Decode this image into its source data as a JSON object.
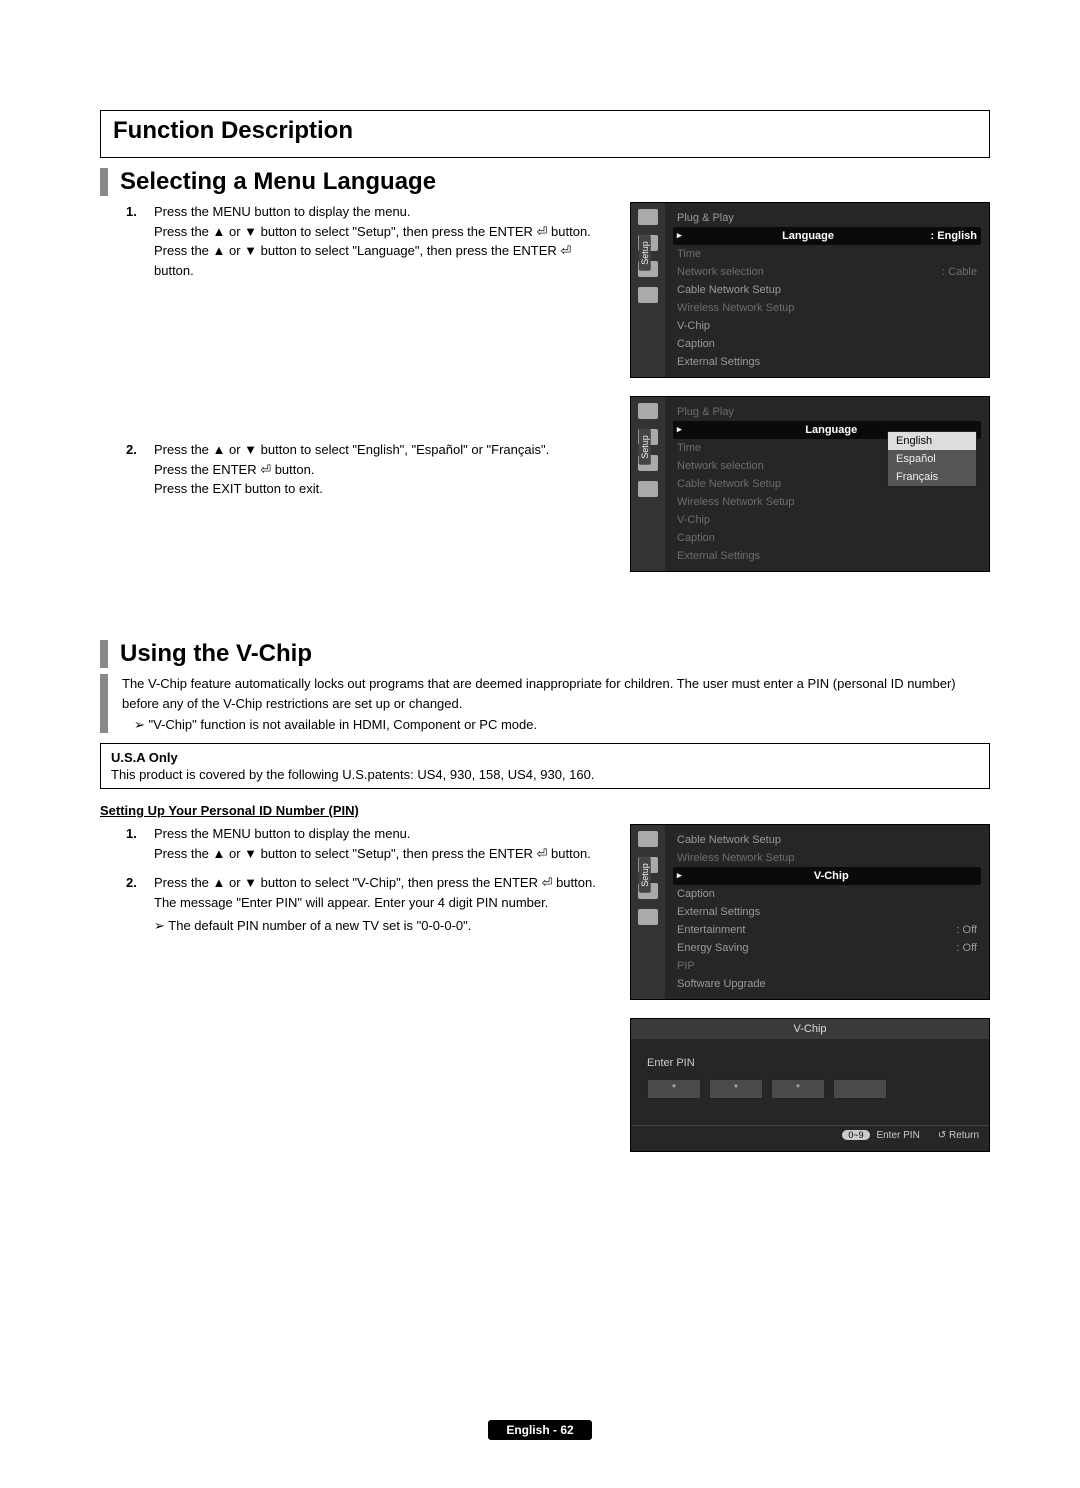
{
  "page_title": "Function Description",
  "section1": {
    "title": "Selecting a Menu Language",
    "steps": [
      "Press the MENU button to display the menu.\nPress the ▲ or ▼ button to select \"Setup\", then press the ENTER ⏎ button.\nPress the ▲ or ▼ button to select \"Language\", then press the ENTER ⏎ button.",
      "Press the ▲ or ▼ button to select \"English\", \"Español\" or \"Français\".\nPress the ENTER ⏎ button.\nPress the EXIT button to exit."
    ],
    "menu1": {
      "side_label": "Setup",
      "items": [
        {
          "label": "Plug & Play",
          "value": "",
          "dim": false,
          "hl": false
        },
        {
          "label": "Language",
          "value": ": English",
          "dim": false,
          "hl": true
        },
        {
          "label": "Time",
          "value": "",
          "dim": true,
          "hl": false
        },
        {
          "label": "Network selection",
          "value": ": Cable",
          "dim": true,
          "hl": false
        },
        {
          "label": "Cable Network Setup",
          "value": "",
          "dim": false,
          "hl": false
        },
        {
          "label": "Wireless Network Setup",
          "value": "",
          "dim": true,
          "hl": false
        },
        {
          "label": "V-Chip",
          "value": "",
          "dim": false,
          "hl": false
        },
        {
          "label": "Caption",
          "value": "",
          "dim": false,
          "hl": false
        },
        {
          "label": "External Settings",
          "value": "",
          "dim": false,
          "hl": false
        }
      ]
    },
    "menu2": {
      "side_label": "Setup",
      "items": [
        {
          "label": "Plug & Play",
          "value": "",
          "dim": true,
          "hl": false
        },
        {
          "label": "Language",
          "value": "",
          "dim": false,
          "hl": true
        },
        {
          "label": "Time",
          "value": "",
          "dim": true,
          "hl": false
        },
        {
          "label": "Network selection",
          "value": "",
          "dim": true,
          "hl": false
        },
        {
          "label": "Cable Network Setup",
          "value": "",
          "dim": true,
          "hl": false
        },
        {
          "label": "Wireless Network Setup",
          "value": "",
          "dim": true,
          "hl": false
        },
        {
          "label": "V-Chip",
          "value": "",
          "dim": true,
          "hl": false
        },
        {
          "label": "Caption",
          "value": "",
          "dim": true,
          "hl": false
        },
        {
          "label": "External Settings",
          "value": "",
          "dim": true,
          "hl": false
        }
      ],
      "popup": [
        "English",
        "Español",
        "Français"
      ],
      "popup_selected": 0
    }
  },
  "section2": {
    "title": "Using the V-Chip",
    "intro": "The V-Chip feature automatically locks out programs that are deemed inappropriate for children. The user must enter a PIN (personal ID number) before any of the V-Chip restrictions are set up or changed.",
    "note": "\"V-Chip\" function is not available in HDMI, Component or PC mode.",
    "usa_title": "U.S.A Only",
    "usa_body": "This product is covered by the following U.S.patents: US4, 930, 158, US4, 930, 160.",
    "sub_heading": "Setting Up Your Personal ID Number (PIN)",
    "steps": [
      "Press the MENU button to display the menu.\nPress the ▲ or ▼ button to select \"Setup\", then press the ENTER ⏎ button.",
      "Press the ▲ or ▼ button to select \"V-Chip\", then press the ENTER ⏎ button.\nThe message \"Enter PIN\" will appear. Enter your 4 digit PIN number."
    ],
    "step2_note": "The default PIN number of a new TV set is \"0-0-0-0\".",
    "menu3": {
      "side_label": "Setup",
      "items": [
        {
          "label": "Cable Network Setup",
          "value": "",
          "dim": false,
          "hl": false
        },
        {
          "label": "Wireless Network Setup",
          "value": "",
          "dim": true,
          "hl": false
        },
        {
          "label": "V-Chip",
          "value": "",
          "dim": false,
          "hl": true
        },
        {
          "label": "Caption",
          "value": "",
          "dim": false,
          "hl": false
        },
        {
          "label": "External Settings",
          "value": "",
          "dim": false,
          "hl": false
        },
        {
          "label": "Entertainment",
          "value": ": Off",
          "dim": false,
          "hl": false
        },
        {
          "label": "Energy Saving",
          "value": ": Off",
          "dim": false,
          "hl": false
        },
        {
          "label": "PIP",
          "value": "",
          "dim": true,
          "hl": false
        },
        {
          "label": "Software Upgrade",
          "value": "",
          "dim": false,
          "hl": false
        }
      ]
    },
    "pinbox": {
      "title": "V-Chip",
      "label": "Enter PIN",
      "foot_enter": "Enter PIN",
      "foot_enter_pill": "0~9",
      "foot_return": "Return"
    }
  },
  "footer": "English - 62"
}
